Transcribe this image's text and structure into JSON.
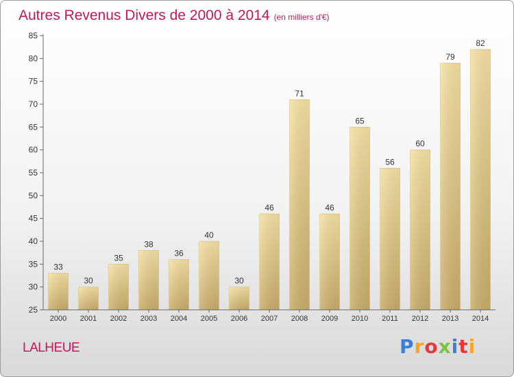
{
  "chart_data": {
    "type": "bar",
    "title": "Autres Revenus Divers de 2000 à 2014",
    "subtitle": "(en milliers d'€)",
    "xlabel": "",
    "ylabel": "",
    "categories": [
      "2000",
      "2001",
      "2002",
      "2003",
      "2004",
      "2005",
      "2006",
      "2007",
      "2008",
      "2009",
      "2010",
      "2011",
      "2012",
      "2013",
      "2014"
    ],
    "values": [
      33,
      30,
      35,
      38,
      36,
      40,
      30,
      46,
      71,
      46,
      65,
      56,
      60,
      79,
      82
    ],
    "ylim": [
      25,
      85
    ],
    "yticks": [
      25,
      30,
      35,
      40,
      45,
      50,
      55,
      60,
      65,
      70,
      75,
      80,
      85
    ],
    "grid": false,
    "legend": "none",
    "bar_color": "#e3c98a",
    "title_color": "#c2185b"
  },
  "footer": {
    "commune": "LALHEUE",
    "logo_text": "Proxiti"
  }
}
